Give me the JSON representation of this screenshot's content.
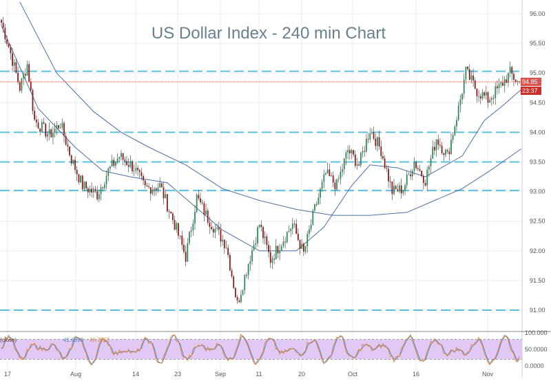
{
  "colors": {
    "up": "#2e8b57",
    "down": "#8b1a1a",
    "ma_line": "#4a6fa5",
    "level_line": "#5bc0de",
    "last_price_bg": "#d9534f",
    "osc_fill": "#e2c8f5",
    "stoch_k": "#e0843a",
    "stoch_d": "#4f86c6",
    "grid": "#eeeeee"
  },
  "chart_data": [
    {
      "type": "candlestick",
      "title": "US Dollar Index - 240 min Chart",
      "ylim": [
        90.85,
        96.2
      ],
      "y_ticks": [
        "96.00",
        "95.50",
        "95.00",
        "94.50",
        "94.00",
        "93.50",
        "93.00",
        "92.50",
        "92.00",
        "91.50",
        "91.00"
      ],
      "x_ticks": [
        "17",
        "Aug",
        "14",
        "23",
        "Sep",
        "11",
        "20",
        "Oct",
        "16",
        "Nov"
      ],
      "last_price": "94.85",
      "countdown": "23:37",
      "horizontal_levels": [
        95.03,
        94.0,
        93.5,
        93.02,
        91.0
      ],
      "anchors": [
        {
          "i": 0,
          "v": 95.85
        },
        {
          "i": 4,
          "v": 95.45
        },
        {
          "i": 10,
          "v": 94.75
        },
        {
          "i": 14,
          "v": 95.15
        },
        {
          "i": 18,
          "v": 94.2
        },
        {
          "i": 26,
          "v": 93.95
        },
        {
          "i": 32,
          "v": 94.15
        },
        {
          "i": 38,
          "v": 93.55
        },
        {
          "i": 44,
          "v": 93.1
        },
        {
          "i": 52,
          "v": 92.95
        },
        {
          "i": 58,
          "v": 93.35
        },
        {
          "i": 64,
          "v": 93.6
        },
        {
          "i": 72,
          "v": 93.4
        },
        {
          "i": 78,
          "v": 93.05
        },
        {
          "i": 86,
          "v": 93.1
        },
        {
          "i": 94,
          "v": 92.45
        },
        {
          "i": 100,
          "v": 91.9
        },
        {
          "i": 106,
          "v": 92.9
        },
        {
          "i": 112,
          "v": 92.55
        },
        {
          "i": 122,
          "v": 92.1
        },
        {
          "i": 128,
          "v": 91.1
        },
        {
          "i": 134,
          "v": 91.8
        },
        {
          "i": 140,
          "v": 92.45
        },
        {
          "i": 146,
          "v": 91.85
        },
        {
          "i": 152,
          "v": 92.15
        },
        {
          "i": 158,
          "v": 92.45
        },
        {
          "i": 164,
          "v": 91.95
        },
        {
          "i": 170,
          "v": 92.7
        },
        {
          "i": 176,
          "v": 93.3
        },
        {
          "i": 182,
          "v": 93.1
        },
        {
          "i": 188,
          "v": 93.7
        },
        {
          "i": 194,
          "v": 93.45
        },
        {
          "i": 200,
          "v": 94.05
        },
        {
          "i": 206,
          "v": 93.7
        },
        {
          "i": 212,
          "v": 93.0
        },
        {
          "i": 218,
          "v": 93.05
        },
        {
          "i": 224,
          "v": 93.5
        },
        {
          "i": 230,
          "v": 93.2
        },
        {
          "i": 236,
          "v": 93.9
        },
        {
          "i": 242,
          "v": 93.6
        },
        {
          "i": 248,
          "v": 94.4
        },
        {
          "i": 252,
          "v": 95.02
        },
        {
          "i": 258,
          "v": 94.7
        },
        {
          "i": 264,
          "v": 94.55
        },
        {
          "i": 270,
          "v": 94.75
        },
        {
          "i": 276,
          "v": 95.0
        },
        {
          "i": 280,
          "v": 94.85
        }
      ],
      "ma_fast": [
        [
          0,
          95.8
        ],
        [
          20,
          94.4
        ],
        [
          40,
          93.75
        ],
        [
          55,
          93.35
        ],
        [
          70,
          93.25
        ],
        [
          90,
          93.15
        ],
        [
          105,
          92.75
        ],
        [
          120,
          92.35
        ],
        [
          140,
          92.0
        ],
        [
          160,
          92.0
        ],
        [
          175,
          92.4
        ],
        [
          190,
          93.1
        ],
        [
          200,
          93.45
        ],
        [
          215,
          93.4
        ],
        [
          230,
          93.25
        ],
        [
          250,
          93.6
        ],
        [
          262,
          94.2
        ],
        [
          272,
          94.45
        ],
        [
          282,
          94.72
        ]
      ],
      "ma_slow": [
        [
          10,
          96.2
        ],
        [
          30,
          95.0
        ],
        [
          50,
          94.35
        ],
        [
          65,
          94.0
        ],
        [
          80,
          93.75
        ],
        [
          100,
          93.45
        ],
        [
          120,
          93.05
        ],
        [
          140,
          92.85
        ],
        [
          160,
          92.7
        ],
        [
          180,
          92.6
        ],
        [
          200,
          92.6
        ],
        [
          220,
          92.65
        ],
        [
          235,
          92.85
        ],
        [
          250,
          93.05
        ],
        [
          265,
          93.35
        ],
        [
          282,
          93.72
        ]
      ]
    },
    {
      "type": "line",
      "name": "stochastic_oscillator",
      "legend_prefix": "(close)",
      "k_label": "41.6998",
      "d_label": "46.7252",
      "ylim": [
        0,
        100
      ],
      "band": [
        20,
        80
      ],
      "y_ticks": [
        "100.000",
        "50.0000",
        "0.0000"
      ]
    }
  ]
}
